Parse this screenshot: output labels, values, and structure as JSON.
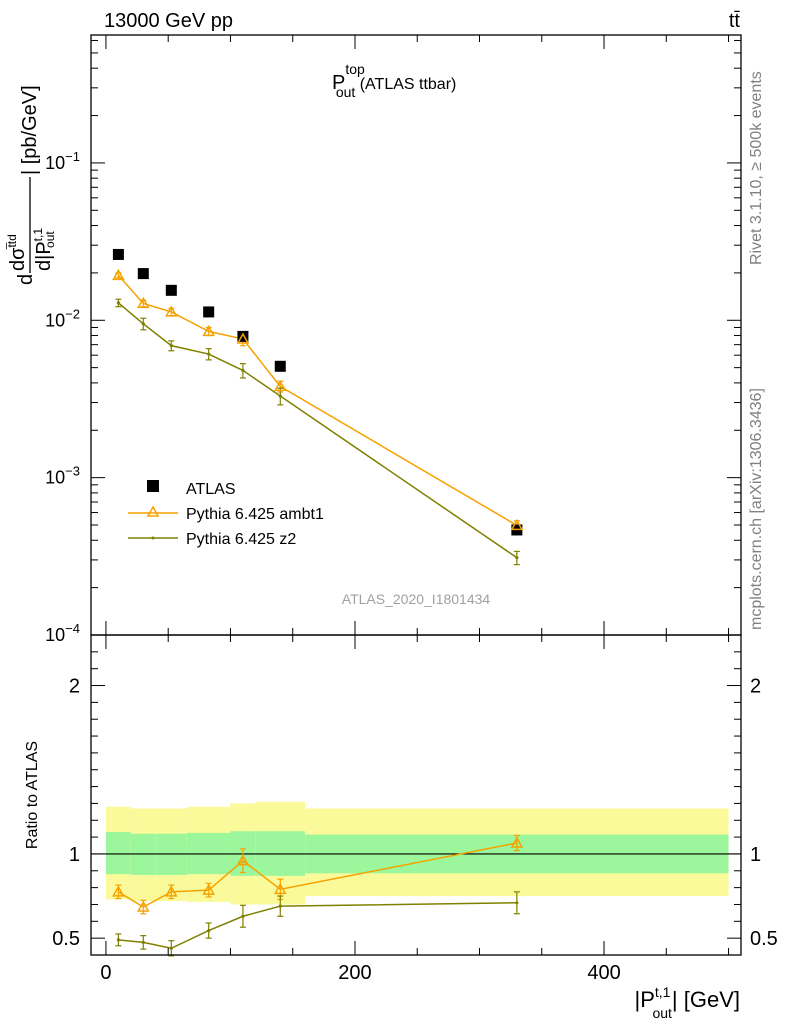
{
  "header": {
    "energy": "13000 GeV pp",
    "process": "tt̄"
  },
  "title": {
    "main": "P",
    "sup": "top",
    "sub": "out",
    "suffix": " (ATLAS ttbar)"
  },
  "side": {
    "rivet": "Rivet 3.1.10, ≥ 500k events",
    "mcplots": "mcplots.cern.ch [arXiv:1306.3436]"
  },
  "analysis_label": "ATLAS_2020_I1801434",
  "main_ylabel": {
    "d1": "d",
    "dsig": "dσ",
    "sig_sup": "t̅td",
    "dP": "d|P",
    "P_sup": "t,1",
    "P_sub": "out",
    "unit": "| [pb/GeV]"
  },
  "ratio_ylabel": "Ratio to ATLAS",
  "xlabel": {
    "open": "|P",
    "sup": "t,1",
    "sub": "out",
    "close": "| [GeV]"
  },
  "legend": [
    {
      "label": "ATLAS",
      "color": "#000000",
      "marker": "square"
    },
    {
      "label": "Pythia 6.425 ambt1",
      "color": "#f5a200",
      "marker": "triangle-open"
    },
    {
      "label": "Pythia 6.425 z2",
      "color": "#808000",
      "marker": "dot"
    }
  ],
  "chart_data": [
    {
      "type": "scatter",
      "name": "main",
      "yscale": "log",
      "xlim": [
        -12,
        510
      ],
      "ylim": [
        0.0001,
        0.65
      ],
      "y_ticks": [
        "10^-1",
        "10^-2",
        "10^-3",
        "10^-4"
      ],
      "x": [
        10,
        30,
        52.5,
        82.5,
        110,
        140,
        330
      ],
      "series": [
        {
          "name": "ATLAS",
          "values": [
            0.0262,
            0.0198,
            0.0155,
            0.0113,
            0.0079,
            0.0051,
            0.000465
          ]
        },
        {
          "name": "Pythia 6.425 ambt1",
          "values": [
            0.0193,
            0.0128,
            0.0113,
            0.0085,
            0.0076,
            0.0038,
            0.000497
          ]
        },
        {
          "name": "Pythia 6.425 z2",
          "values": [
            0.0129,
            0.0095,
            0.0069,
            0.0061,
            0.0048,
            0.0033,
            0.00031
          ]
        }
      ],
      "errors": {
        "Pythia 6.425 ambt1": [
          0.0007,
          0.0006,
          0.0006,
          0.0005,
          0.0007,
          0.0003,
          3.5e-05
        ],
        "Pythia 6.425 z2": [
          0.0007,
          0.0008,
          0.0005,
          0.0005,
          0.0005,
          0.0004,
          3e-05
        ]
      }
    },
    {
      "type": "line",
      "name": "ratio",
      "ylabel": "Ratio to ATLAS",
      "xlim": [
        -12,
        510
      ],
      "ylim": [
        0.4,
        2.3
      ],
      "y_ticks": [
        0.5,
        1,
        2
      ],
      "x_ticks": [
        0,
        200,
        400
      ],
      "bins": [
        [
          0,
          20
        ],
        [
          20,
          40
        ],
        [
          40,
          65
        ],
        [
          65,
          100
        ],
        [
          100,
          120
        ],
        [
          120,
          160
        ],
        [
          160,
          500
        ]
      ],
      "band_inner": [
        [
          0.88,
          1.13
        ],
        [
          0.875,
          1.12
        ],
        [
          0.875,
          1.12
        ],
        [
          0.88,
          1.125
        ],
        [
          0.87,
          1.135
        ],
        [
          0.87,
          1.135
        ],
        [
          0.885,
          1.115
        ]
      ],
      "band_outer": [
        [
          0.73,
          1.28
        ],
        [
          0.72,
          1.27
        ],
        [
          0.72,
          1.27
        ],
        [
          0.715,
          1.28
        ],
        [
          0.7,
          1.3
        ],
        [
          0.7,
          1.31
        ],
        [
          0.75,
          1.27
        ]
      ],
      "x": [
        10,
        30,
        52.5,
        82.5,
        110,
        140,
        330
      ],
      "series": [
        {
          "name": "Pythia 6.425 ambt1",
          "values": [
            0.775,
            0.685,
            0.775,
            0.785,
            0.96,
            0.79,
            1.065
          ],
          "errors": [
            0.04,
            0.04,
            0.04,
            0.04,
            0.07,
            0.06,
            0.045
          ]
        },
        {
          "name": "Pythia 6.425 z2",
          "values": [
            0.49,
            0.475,
            0.44,
            0.545,
            0.63,
            0.69,
            0.71
          ],
          "errors": [
            0.035,
            0.04,
            0.045,
            0.045,
            0.065,
            0.06,
            0.065
          ]
        }
      ]
    }
  ]
}
